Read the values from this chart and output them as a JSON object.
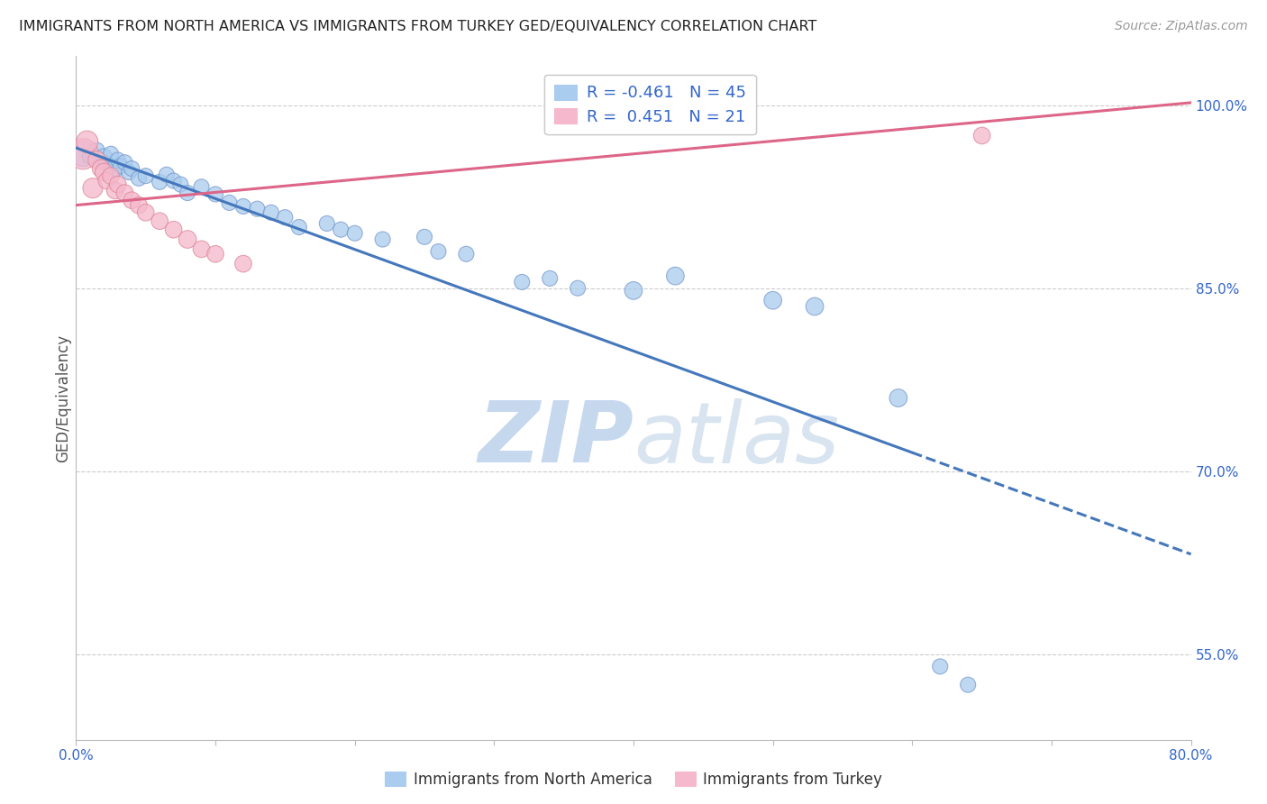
{
  "title": "IMMIGRANTS FROM NORTH AMERICA VS IMMIGRANTS FROM TURKEY GED/EQUIVALENCY CORRELATION CHART",
  "source": "Source: ZipAtlas.com",
  "xlabel_blue": "Immigrants from North America",
  "xlabel_pink": "Immigrants from Turkey",
  "ylabel": "GED/Equivalency",
  "watermark_zip": "ZIP",
  "watermark_atlas": "atlas",
  "legend_blue_r": "-0.461",
  "legend_blue_n": "45",
  "legend_pink_r": " 0.451",
  "legend_pink_n": "21",
  "xmin": 0.0,
  "xmax": 0.8,
  "ymin": 0.48,
  "ymax": 1.04,
  "right_yticks": [
    1.0,
    0.85,
    0.7,
    0.55
  ],
  "right_ytick_labels": [
    "100.0%",
    "85.0%",
    "70.0%",
    "55.0%"
  ],
  "blue_scatter": [
    [
      0.005,
      0.96
    ],
    [
      0.01,
      0.958
    ],
    [
      0.015,
      0.963
    ],
    [
      0.018,
      0.955
    ],
    [
      0.02,
      0.957
    ],
    [
      0.022,
      0.952
    ],
    [
      0.025,
      0.96
    ],
    [
      0.028,
      0.948
    ],
    [
      0.03,
      0.955
    ],
    [
      0.032,
      0.95
    ],
    [
      0.035,
      0.953
    ],
    [
      0.038,
      0.945
    ],
    [
      0.04,
      0.948
    ],
    [
      0.045,
      0.94
    ],
    [
      0.05,
      0.942
    ],
    [
      0.06,
      0.937
    ],
    [
      0.065,
      0.943
    ],
    [
      0.07,
      0.938
    ],
    [
      0.075,
      0.935
    ],
    [
      0.08,
      0.928
    ],
    [
      0.09,
      0.933
    ],
    [
      0.1,
      0.927
    ],
    [
      0.11,
      0.92
    ],
    [
      0.12,
      0.917
    ],
    [
      0.13,
      0.915
    ],
    [
      0.14,
      0.912
    ],
    [
      0.15,
      0.908
    ],
    [
      0.16,
      0.9
    ],
    [
      0.18,
      0.903
    ],
    [
      0.19,
      0.898
    ],
    [
      0.2,
      0.895
    ],
    [
      0.22,
      0.89
    ],
    [
      0.25,
      0.892
    ],
    [
      0.26,
      0.88
    ],
    [
      0.28,
      0.878
    ],
    [
      0.32,
      0.855
    ],
    [
      0.34,
      0.858
    ],
    [
      0.36,
      0.85
    ],
    [
      0.4,
      0.848
    ],
    [
      0.43,
      0.86
    ],
    [
      0.5,
      0.84
    ],
    [
      0.53,
      0.835
    ],
    [
      0.59,
      0.76
    ],
    [
      0.62,
      0.54
    ],
    [
      0.64,
      0.525
    ]
  ],
  "blue_sizes": [
    400,
    150,
    150,
    150,
    200,
    150,
    150,
    200,
    150,
    150,
    150,
    150,
    150,
    150,
    150,
    150,
    150,
    150,
    150,
    150,
    150,
    150,
    150,
    150,
    150,
    150,
    150,
    150,
    150,
    150,
    150,
    150,
    150,
    150,
    150,
    150,
    150,
    150,
    200,
    200,
    200,
    200,
    200,
    150,
    150
  ],
  "pink_scatter": [
    [
      0.005,
      0.96
    ],
    [
      0.008,
      0.97
    ],
    [
      0.012,
      0.932
    ],
    [
      0.015,
      0.955
    ],
    [
      0.018,
      0.948
    ],
    [
      0.02,
      0.945
    ],
    [
      0.022,
      0.938
    ],
    [
      0.025,
      0.942
    ],
    [
      0.028,
      0.93
    ],
    [
      0.03,
      0.935
    ],
    [
      0.035,
      0.928
    ],
    [
      0.04,
      0.922
    ],
    [
      0.045,
      0.918
    ],
    [
      0.05,
      0.912
    ],
    [
      0.06,
      0.905
    ],
    [
      0.07,
      0.898
    ],
    [
      0.08,
      0.89
    ],
    [
      0.09,
      0.882
    ],
    [
      0.1,
      0.878
    ],
    [
      0.12,
      0.87
    ],
    [
      0.65,
      0.975
    ]
  ],
  "pink_sizes": [
    600,
    300,
    250,
    200,
    200,
    200,
    180,
    180,
    180,
    180,
    180,
    180,
    180,
    180,
    180,
    180,
    200,
    180,
    180,
    180,
    180
  ],
  "blue_line_x": [
    0.0,
    0.8
  ],
  "blue_line_y": [
    0.965,
    0.632
  ],
  "blue_line_solid_end_x": 0.6,
  "pink_line_x": [
    0.0,
    0.8
  ],
  "pink_line_y": [
    0.918,
    1.002
  ],
  "background_color": "#ffffff",
  "grid_color": "#cccccc",
  "blue_color": "#aaccee",
  "blue_edge_color": "#7799cc",
  "blue_line_color": "#4477bb",
  "pink_color": "#f5b8cc",
  "pink_edge_color": "#dd8899",
  "pink_line_color": "#dd6688",
  "title_color": "#222222",
  "axis_label_color": "#555555",
  "right_axis_color": "#3366cc",
  "watermark_color": "#c5d8ee"
}
